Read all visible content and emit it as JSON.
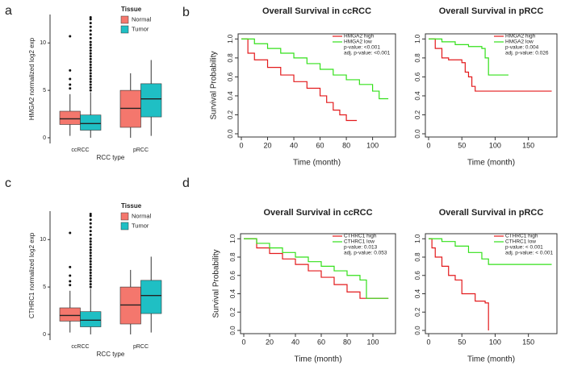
{
  "chart_data": [
    {
      "type": "box",
      "panel": "a",
      "ylabel": "HMGA2 normalized log2 exp",
      "xlabel": "RCC type",
      "legend_title": "Tissue",
      "categories": [
        "ccRCC",
        "pRCC"
      ],
      "ylim": [
        -0.6,
        13
      ],
      "yticks": [
        0,
        5,
        10
      ],
      "series": [
        {
          "name": "Normal",
          "color": "#f4776d",
          "low": [
            0.2,
            0
          ],
          "q1": [
            1.4,
            1.1
          ],
          "median": [
            2.0,
            3.1
          ],
          "q3": [
            2.8,
            5.0
          ],
          "high": [
            4.6,
            6.8
          ],
          "outliers": [
            [
              5.2,
              5.6,
              6.2,
              7.1,
              10.7
            ],
            []
          ]
        },
        {
          "name": "Tumor",
          "color": "#1fbfc4",
          "low": [
            0,
            0.2
          ],
          "q1": [
            0.8,
            2.2
          ],
          "median": [
            1.5,
            4.1
          ],
          "q3": [
            2.4,
            5.7
          ],
          "high": [
            4.8,
            8.2
          ],
          "outliers": [
            [
              5.0,
              5.3,
              5.6,
              5.9,
              6.2,
              6.5,
              6.8,
              7.1,
              7.4,
              7.7,
              8.0,
              8.3,
              8.6,
              8.9,
              9.2,
              9.5,
              9.8,
              10.1,
              10.5,
              10.9,
              11.3,
              11.7,
              12.1,
              12.5,
              12.7
            ],
            []
          ]
        }
      ]
    },
    {
      "type": "km",
      "panel": "b",
      "title": "Overall Survival in ccRCC",
      "xlabel": "Time (month)",
      "ylabel": "Survival Probability",
      "xlim": [
        0,
        115
      ],
      "xticks": [
        0,
        20,
        40,
        60,
        80,
        100
      ],
      "ylim": [
        0,
        1.02
      ],
      "yticks": [
        {
          "value": 0,
          "label": "0.0"
        },
        {
          "value": 0.2,
          "label": "0.2"
        },
        {
          "value": 0.4,
          "label": "0.4"
        },
        {
          "value": 0.6,
          "label": "0.6"
        },
        {
          "value": 0.8,
          "label": "0.8"
        },
        {
          "value": 1,
          "label": "1.0"
        }
      ],
      "annotations": [
        "p-value: <0.001",
        "adj. p-value: <0.001"
      ],
      "series": [
        {
          "name": "HMGA2 high",
          "color": "#e31a1c",
          "x": [
            0,
            5,
            10,
            20,
            30,
            40,
            50,
            60,
            65,
            70,
            75,
            80,
            88
          ],
          "values": [
            1,
            0.85,
            0.78,
            0.7,
            0.62,
            0.55,
            0.48,
            0.4,
            0.33,
            0.25,
            0.2,
            0.14,
            0.14
          ]
        },
        {
          "name": "HMGA2 low",
          "color": "#33e01a",
          "x": [
            0,
            10,
            20,
            30,
            40,
            50,
            60,
            70,
            80,
            90,
            100,
            105,
            112
          ],
          "values": [
            1,
            0.95,
            0.9,
            0.85,
            0.8,
            0.74,
            0.68,
            0.62,
            0.57,
            0.52,
            0.45,
            0.37,
            0.37
          ]
        }
      ]
    },
    {
      "type": "km",
      "title": "Overall Survival in pRCC",
      "xlabel": "Time (month)",
      "xlim": [
        0,
        188
      ],
      "xticks": [
        0,
        50,
        100,
        150
      ],
      "ylim": [
        0,
        1.02
      ],
      "yticks": [
        {
          "value": 0,
          "label": "0.0"
        },
        {
          "value": 0.2,
          "label": "0.2"
        },
        {
          "value": 0.4,
          "label": "0.4"
        },
        {
          "value": 0.6,
          "label": "0.6"
        },
        {
          "value": 0.8,
          "label": "0.8"
        },
        {
          "value": 1,
          "label": "1.0"
        }
      ],
      "annotations": [
        "p-value: 0.004",
        "adj. p-value: 0.026"
      ],
      "series": [
        {
          "name": "HMGA2 high",
          "color": "#e31a1c",
          "x": [
            0,
            10,
            20,
            30,
            50,
            55,
            60,
            65,
            70,
            80,
            185
          ],
          "values": [
            1,
            0.9,
            0.8,
            0.78,
            0.75,
            0.65,
            0.6,
            0.5,
            0.45,
            0.45,
            0.45
          ]
        },
        {
          "name": "HMGA2 low",
          "color": "#33e01a",
          "x": [
            0,
            20,
            40,
            60,
            80,
            85,
            90,
            120
          ],
          "values": [
            1,
            0.97,
            0.94,
            0.92,
            0.9,
            0.8,
            0.62,
            0.62
          ]
        }
      ]
    },
    {
      "type": "box",
      "panel": "c",
      "ylabel": "CTHRC1 normalized log2 exp",
      "xlabel": "RCC type",
      "legend_title": "Tissue",
      "categories": [
        "ccRCC",
        "pRCC"
      ],
      "ylim": [
        -0.6,
        13
      ],
      "yticks": [
        0,
        5,
        10
      ],
      "series": [
        {
          "name": "Normal",
          "color": "#f4776d",
          "low": [
            0.2,
            0
          ],
          "q1": [
            1.4,
            1.1
          ],
          "median": [
            2.0,
            3.1
          ],
          "q3": [
            2.8,
            5.0
          ],
          "high": [
            4.6,
            6.8
          ],
          "outliers": [
            [
              5.2,
              5.6,
              6.2,
              7.1,
              10.7
            ],
            []
          ]
        },
        {
          "name": "Tumor",
          "color": "#1fbfc4",
          "low": [
            0,
            0.2
          ],
          "q1": [
            0.8,
            2.2
          ],
          "median": [
            1.5,
            4.1
          ],
          "q3": [
            2.4,
            5.7
          ],
          "high": [
            4.8,
            8.2
          ],
          "outliers": [
            [
              5.0,
              5.3,
              5.6,
              5.9,
              6.2,
              6.5,
              6.8,
              7.1,
              7.4,
              7.7,
              8.0,
              8.3,
              8.6,
              8.9,
              9.2,
              9.5,
              9.8,
              10.1,
              10.5,
              10.9,
              11.3,
              11.7,
              12.1,
              12.5,
              12.7
            ],
            []
          ]
        }
      ]
    },
    {
      "type": "km",
      "panel": "d",
      "title": "Overall Survival in ccRCC",
      "xlabel": "Time (month)",
      "ylabel": "Survival Probability",
      "xlim": [
        0,
        115
      ],
      "xticks": [
        0,
        20,
        40,
        60,
        80,
        100
      ],
      "ylim": [
        0,
        1.02
      ],
      "yticks": [
        {
          "value": 0,
          "label": "0.0"
        },
        {
          "value": 0.2,
          "label": "0.2"
        },
        {
          "value": 0.4,
          "label": "0.4"
        },
        {
          "value": 0.6,
          "label": "0.6"
        },
        {
          "value": 0.8,
          "label": "0.8"
        },
        {
          "value": 1,
          "label": "1.0"
        }
      ],
      "annotations": [
        "p-value: 0.013",
        "adj. p-value: 0.053"
      ],
      "series": [
        {
          "name": "CTHRC1 high",
          "color": "#e31a1c",
          "x": [
            0,
            10,
            20,
            30,
            40,
            50,
            60,
            70,
            80,
            90,
            100,
            112
          ],
          "values": [
            1,
            0.9,
            0.84,
            0.78,
            0.72,
            0.65,
            0.58,
            0.5,
            0.42,
            0.35,
            0.35,
            0.35
          ]
        },
        {
          "name": "CTHRC1 low",
          "color": "#33e01a",
          "x": [
            0,
            10,
            20,
            30,
            40,
            50,
            60,
            70,
            80,
            90,
            95,
            112
          ],
          "values": [
            1,
            0.95,
            0.9,
            0.85,
            0.8,
            0.75,
            0.7,
            0.65,
            0.6,
            0.55,
            0.35,
            0.35
          ]
        }
      ]
    },
    {
      "type": "km",
      "title": "Overall Survival in pRCC",
      "xlabel": "Time (month)",
      "xlim": [
        0,
        188
      ],
      "xticks": [
        0,
        50,
        100,
        150
      ],
      "ylim": [
        0,
        1.02
      ],
      "yticks": [
        {
          "value": 0,
          "label": "0.0"
        },
        {
          "value": 0.2,
          "label": "0.2"
        },
        {
          "value": 0.4,
          "label": "0.4"
        },
        {
          "value": 0.6,
          "label": "0.6"
        },
        {
          "value": 0.8,
          "label": "0.8"
        },
        {
          "value": 1,
          "label": "1.0"
        }
      ],
      "annotations": [
        "p-value: < 0.001",
        "adj. p-value: < 0.001"
      ],
      "series": [
        {
          "name": "CTHRC1 high",
          "color": "#e31a1c",
          "x": [
            0,
            5,
            10,
            20,
            30,
            40,
            50,
            70,
            85,
            90
          ],
          "values": [
            1,
            0.9,
            0.8,
            0.7,
            0.6,
            0.55,
            0.4,
            0.32,
            0.3,
            0
          ]
        },
        {
          "name": "CTHRC1 low",
          "color": "#33e01a",
          "x": [
            0,
            20,
            40,
            60,
            80,
            90,
            100,
            185
          ],
          "values": [
            1,
            0.97,
            0.92,
            0.85,
            0.78,
            0.72,
            0.72,
            0.72
          ]
        }
      ]
    }
  ]
}
